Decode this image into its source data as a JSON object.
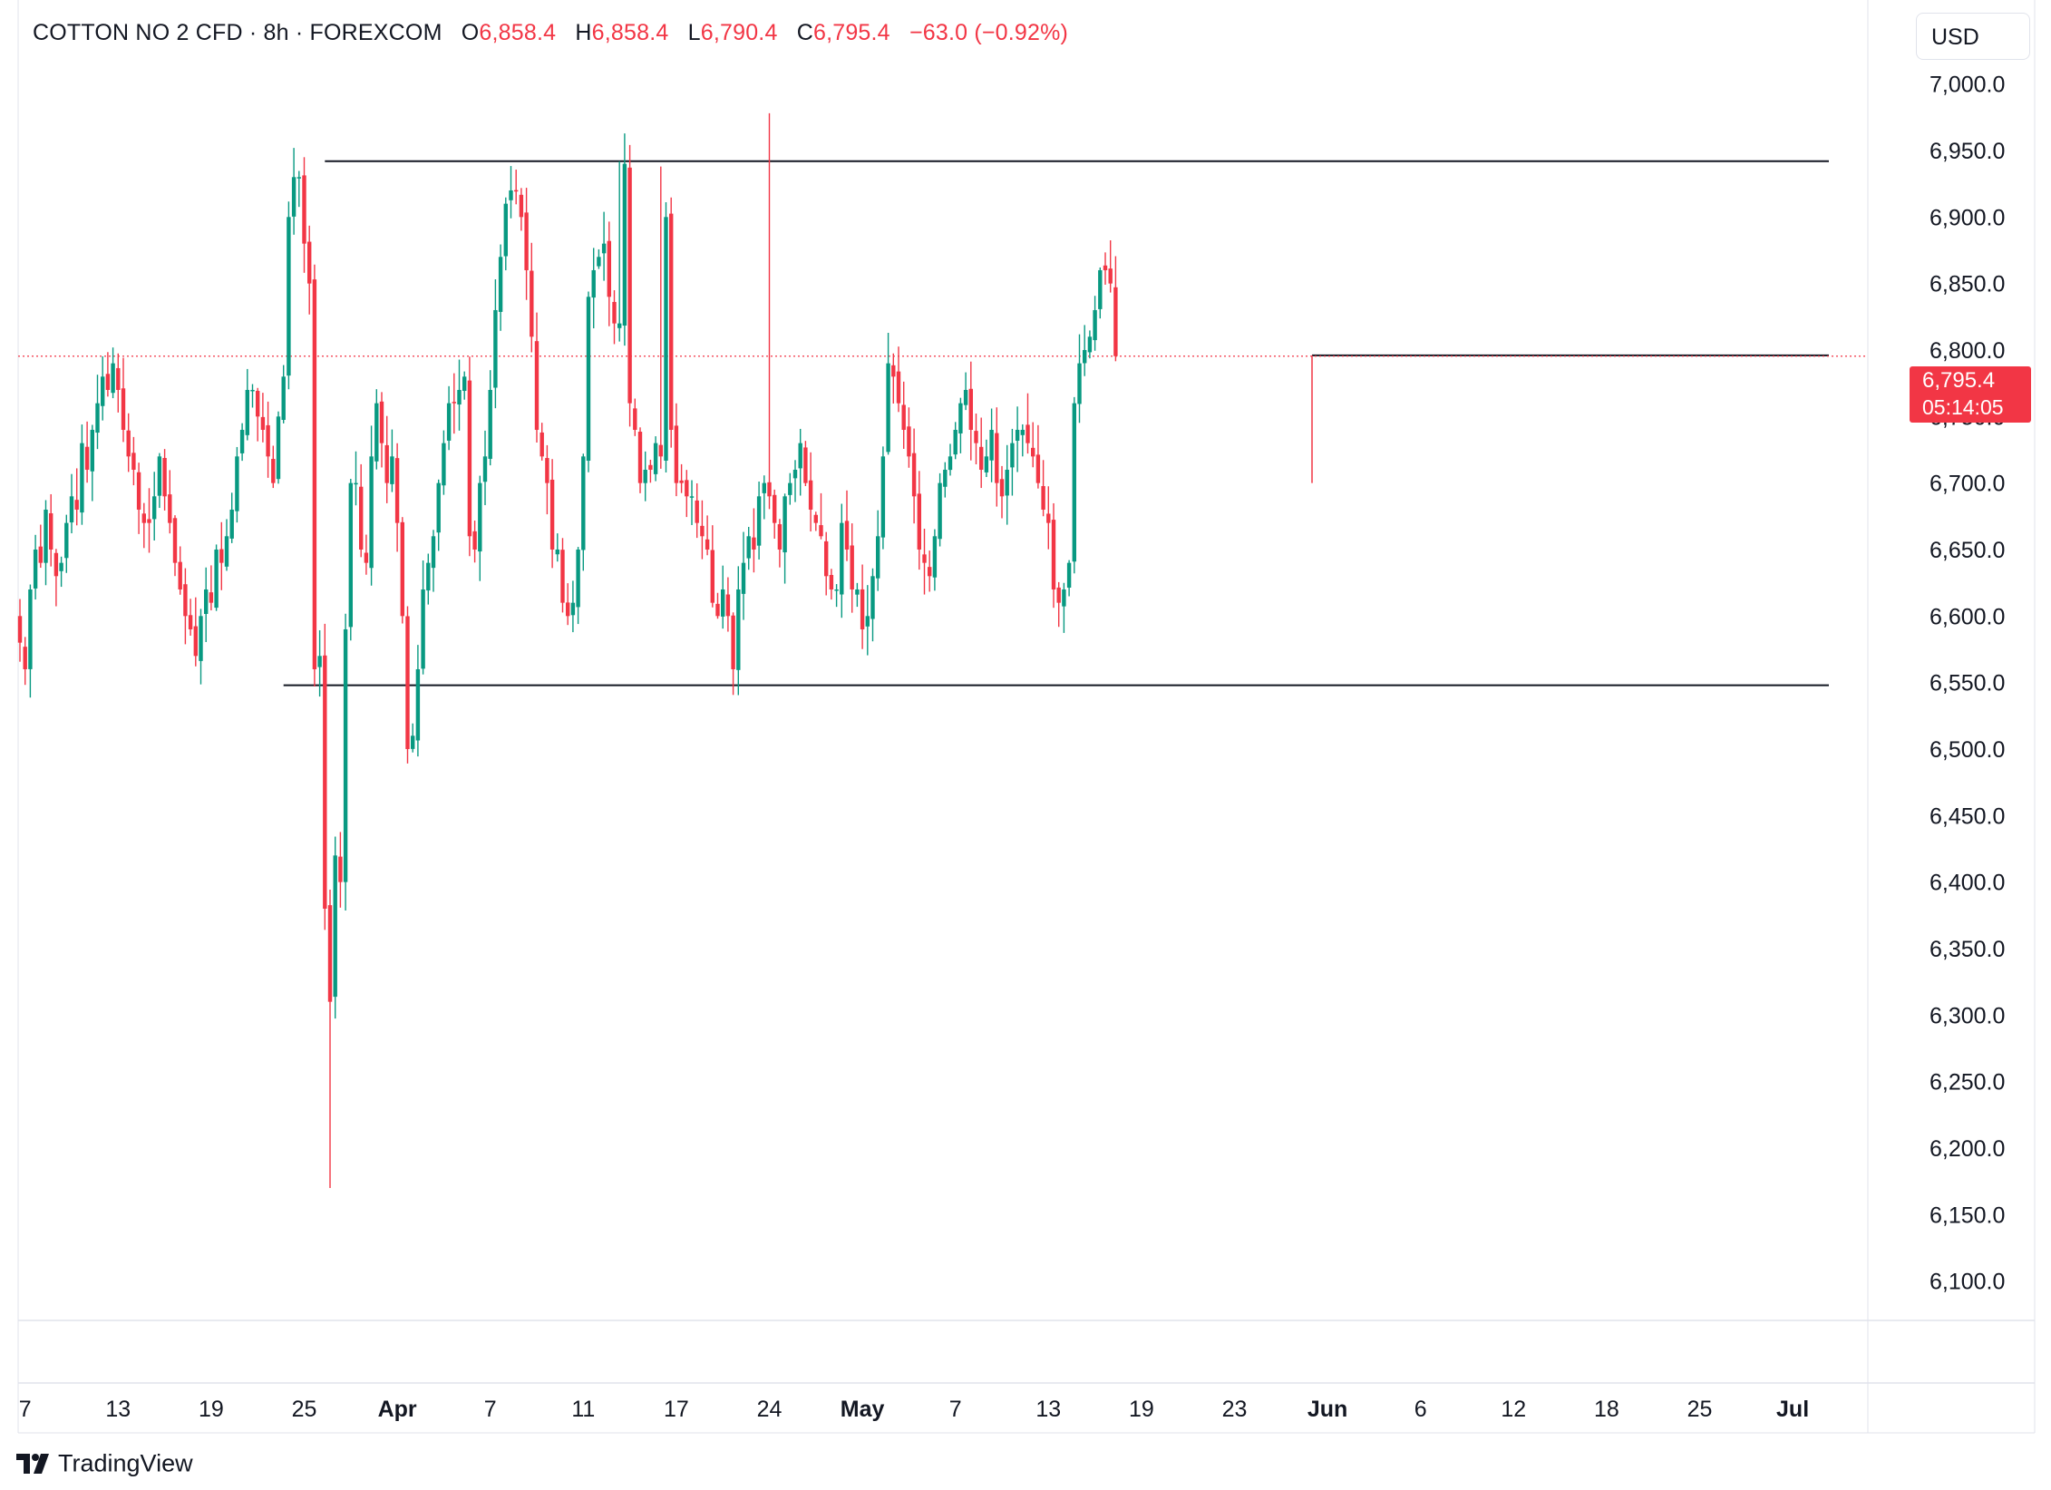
{
  "header": {
    "symbol": "COTTON NO 2 CFD · 8h · FOREXCOM",
    "open_label": "O",
    "open": "6,858.4",
    "high_label": "H",
    "high": "6,858.4",
    "low_label": "L",
    "low": "6,790.4",
    "close_label": "C",
    "close": "6,795.4",
    "change": "−63.0 (−0.92%)"
  },
  "currency": "USD",
  "price_tag": {
    "price": "6,795.4",
    "countdown": "05:14:05"
  },
  "brand": {
    "name": "TradingView"
  },
  "colors": {
    "up": "#089981",
    "down": "#f23645",
    "grid": "#e0e3eb",
    "line": "#131722"
  },
  "chart_data": {
    "type": "candlestick",
    "ylim": [
      6080,
      7060
    ],
    "y_ticks": [
      "7,000.0",
      "6,950.0",
      "6,900.0",
      "6,850.0",
      "6,800.0",
      "6,750.0",
      "6,700.0",
      "6,650.0",
      "6,600.0",
      "6,550.0",
      "6,500.0",
      "6,450.0",
      "6,400.0",
      "6,350.0",
      "6,300.0",
      "6,250.0",
      "6,200.0",
      "6,150.0",
      "6,100.0"
    ],
    "y_tick_values": [
      7000,
      6950,
      6900,
      6850,
      6800,
      6750,
      6700,
      6650,
      6600,
      6550,
      6500,
      6450,
      6400,
      6350,
      6300,
      6250,
      6200,
      6150,
      6100
    ],
    "x_ticks": [
      "7",
      "13",
      "19",
      "25",
      "Apr",
      "7",
      "11",
      "17",
      "24",
      "May",
      "7",
      "13",
      "19",
      "23",
      "Jun",
      "6",
      "12",
      "18",
      "25",
      "Jul"
    ],
    "x_tick_index": [
      1,
      19,
      37,
      55,
      73,
      91,
      109,
      127,
      145,
      163,
      181,
      199,
      217,
      235,
      253,
      271,
      289,
      307,
      325,
      343
    ],
    "bold_ticks": [
      "Apr",
      "May",
      "Jun",
      "Jul"
    ],
    "last_price": 6795.4,
    "lines": [
      {
        "kind": "resistance",
        "y": 6942,
        "from_index": 59,
        "to_index": 350
      },
      {
        "kind": "support",
        "y": 6548,
        "from_index": 51,
        "to_index": 350
      },
      {
        "kind": "range-high",
        "y": 6796,
        "from_index": 250,
        "to_index": 350
      }
    ],
    "closes": [
      6580,
      6560,
      6620,
      6650,
      6640,
      6680,
      6650,
      6630,
      6640,
      6670,
      6690,
      6680,
      6730,
      6710,
      6740,
      6760,
      6780,
      6770,
      6790,
      6770,
      6740,
      6720,
      6710,
      6680,
      6670,
      6670,
      6690,
      6720,
      6690,
      6670,
      6640,
      6620,
      6600,
      6590,
      6570,
      6600,
      6620,
      6610,
      6650,
      6640,
      6660,
      6680,
      6720,
      6740,
      6770,
      6770,
      6750,
      6740,
      6720,
      6700,
      6750,
      6780,
      6900,
      6930,
      6930,
      6880,
      6850,
      6560,
      6570,
      6380,
      6310,
      6420,
      6400,
      6590,
      6700,
      6700,
      6650,
      6640,
      6720,
      6760,
      6730,
      6700,
      6720,
      6670,
      6600,
      6500,
      6510,
      6560,
      6620,
      6640,
      6660,
      6700,
      6730,
      6760,
      6760,
      6770,
      6780,
      6660,
      6650,
      6700,
      6720,
      6770,
      6830,
      6870,
      6910,
      6920,
      6920,
      6900,
      6860,
      6810,
      6740,
      6720,
      6700,
      6650,
      6650,
      6610,
      6600,
      6610,
      6650,
      6720,
      6840,
      6860,
      6870,
      6880,
      6840,
      6820,
      6820,
      6940,
      6760,
      6740,
      6700,
      6710,
      6710,
      6730,
      6720,
      6900,
      6740,
      6700,
      6700,
      6690,
      6690,
      6670,
      6660,
      6650,
      6610,
      6600,
      6620,
      6600,
      6560,
      6620,
      6640,
      6660,
      6650,
      6690,
      6700,
      6690,
      6670,
      6650,
      6690,
      6700,
      6710,
      6730,
      6700,
      6680,
      6670,
      6660,
      6630,
      6620,
      6620,
      6670,
      6650,
      6620,
      6620,
      6590,
      6600,
      6630,
      6660,
      6720,
      6790,
      6780,
      6760,
      6740,
      6720,
      6690,
      6650,
      6640,
      6630,
      6660,
      6700,
      6710,
      6720,
      6740,
      6760,
      6770,
      6740,
      6730,
      6710,
      6720,
      6740,
      6700,
      6690,
      6710,
      6730,
      6740,
      6740,
      6730,
      6720,
      6700,
      6680,
      6670,
      6620,
      6610,
      6620,
      6640,
      6760,
      6790,
      6800,
      6810,
      6830,
      6860,
      6860,
      6850,
      6795.4
    ]
  }
}
